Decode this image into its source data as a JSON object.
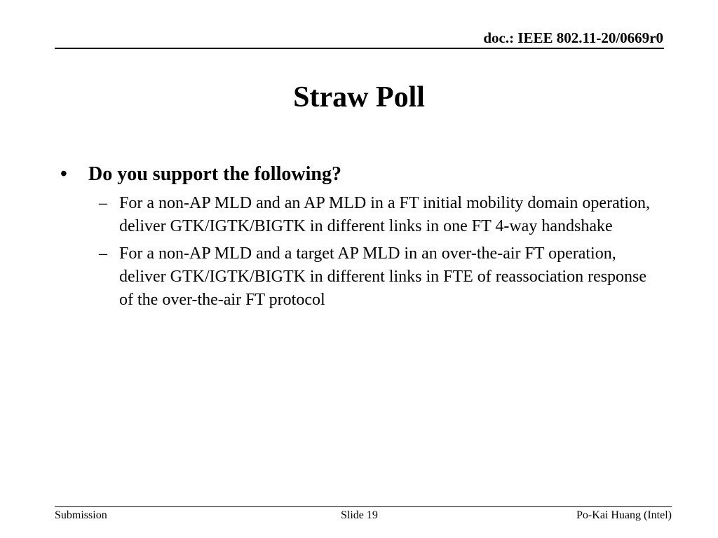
{
  "header": {
    "doc_id": "doc.: IEEE 802.11-20/0669r0"
  },
  "slide": {
    "title": "Straw Poll",
    "bullets": [
      {
        "marker": "•",
        "text": "Do you support the following?",
        "sub_items": [
          {
            "marker": "–",
            "text": "For a non-AP MLD and an AP MLD in a FT initial mobility domain operation, deliver GTK/IGTK/BIGTK in different links in one FT 4-way handshake"
          },
          {
            "marker": "–",
            "text": "For a non-AP MLD and a target AP MLD in an over-the-air FT operation, deliver GTK/IGTK/BIGTK in different links in FTE of reassociation response of the over-the-air FT protocol"
          }
        ]
      }
    ]
  },
  "footer": {
    "left": "Submission",
    "center": "Slide 19",
    "right": "Po-Kai Huang (Intel)"
  }
}
